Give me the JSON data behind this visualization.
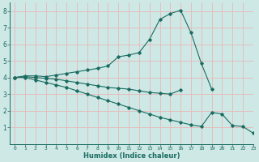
{
  "xlabel": "Humidex (Indice chaleur)",
  "xlim": [
    -0.5,
    23
  ],
  "ylim": [
    0,
    8.5
  ],
  "xticks": [
    0,
    1,
    2,
    3,
    4,
    5,
    6,
    7,
    8,
    9,
    10,
    11,
    12,
    13,
    14,
    15,
    16,
    17,
    18,
    19,
    20,
    21,
    22,
    23
  ],
  "yticks": [
    1,
    2,
    3,
    4,
    5,
    6,
    7,
    8
  ],
  "bg_color": "#cde8e5",
  "grid_color": "#e8b8b8",
  "line_color": "#1a6b60",
  "line1_x": [
    0,
    1,
    2,
    3,
    4,
    5,
    6,
    7,
    8,
    9,
    10,
    11,
    12,
    13,
    14,
    15,
    16,
    17,
    18,
    19
  ],
  "line1_y": [
    4.0,
    4.1,
    4.1,
    4.05,
    4.15,
    4.25,
    4.35,
    4.45,
    4.55,
    4.7,
    5.25,
    5.35,
    5.5,
    6.3,
    7.5,
    7.85,
    8.05,
    6.7,
    4.85,
    3.3
  ],
  "line2_x": [
    0,
    1,
    2,
    3,
    4,
    5,
    6,
    7,
    8,
    9,
    10,
    11,
    12,
    13,
    14,
    15,
    16
  ],
  "line2_y": [
    4.0,
    4.05,
    4.0,
    3.95,
    3.9,
    3.8,
    3.7,
    3.6,
    3.5,
    3.4,
    3.35,
    3.3,
    3.2,
    3.1,
    3.05,
    3.0,
    3.25
  ],
  "line3_x": [
    0,
    1,
    2,
    3,
    4,
    5,
    6,
    7,
    8,
    9,
    10,
    11,
    12,
    13,
    14,
    15,
    16,
    17,
    18,
    19,
    20,
    21,
    22,
    23
  ],
  "line3_y": [
    4.0,
    4.0,
    3.85,
    3.7,
    3.55,
    3.4,
    3.2,
    3.0,
    2.8,
    2.6,
    2.4,
    2.2,
    2.0,
    1.8,
    1.6,
    1.45,
    1.3,
    1.15,
    1.05,
    1.9,
    1.8,
    1.1,
    1.05,
    0.65
  ]
}
